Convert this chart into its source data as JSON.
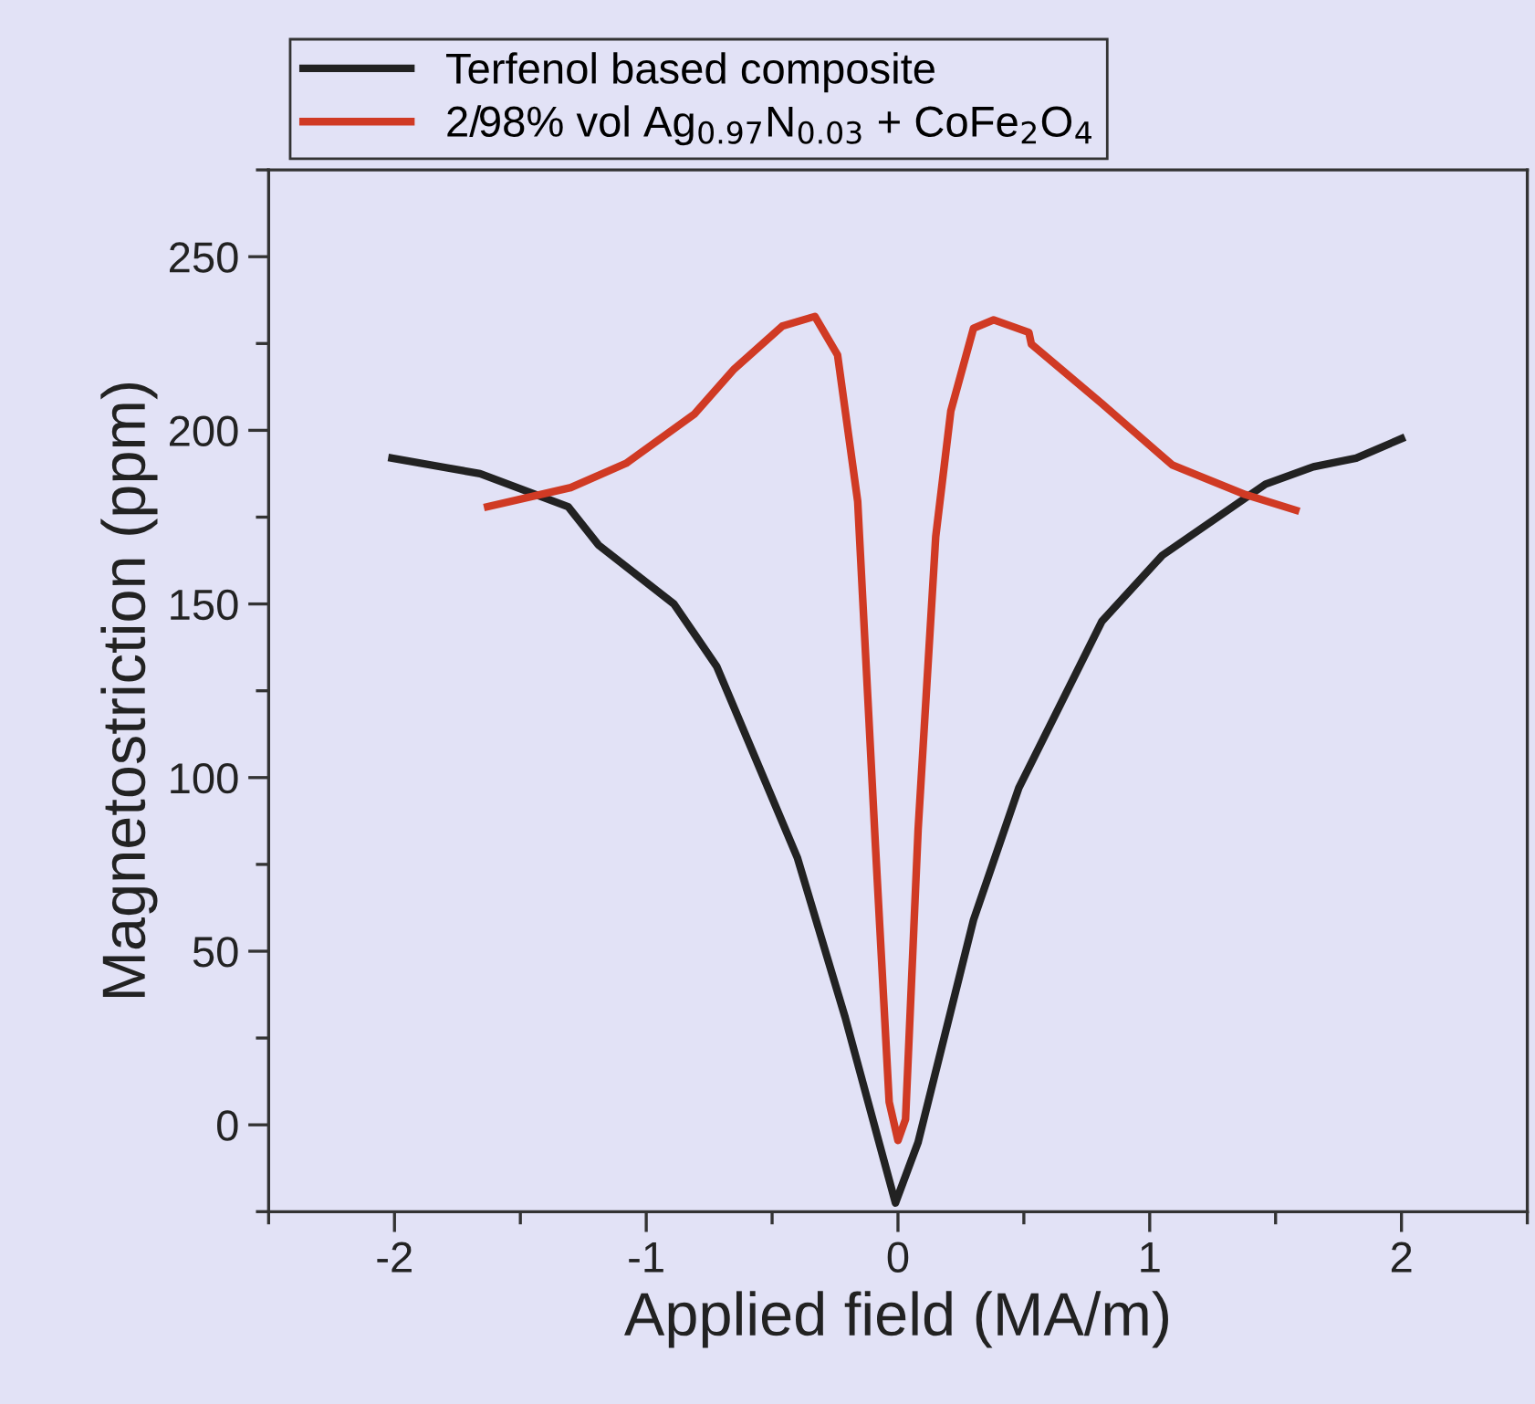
{
  "chart_data": {
    "type": "line",
    "xlabel": "Applied field (MA/m)",
    "ylabel": "Magnetostriction (ppm)",
    "xlim": [
      -2.5,
      2.5
    ],
    "xticks": [
      -2,
      -1,
      0,
      1,
      2
    ],
    "ylim": [
      -25,
      275
    ],
    "yticks": [
      0,
      50,
      100,
      150,
      200,
      250
    ],
    "grid": false,
    "legend": "top",
    "marker": "none",
    "line_style": "solid",
    "series": [
      {
        "name": "Terfenol based composite",
        "color": "#222222",
        "x": [
          -2.01,
          -1.66,
          -1.31,
          -1.19,
          -0.89,
          -0.72,
          -0.4,
          -0.21,
          -0.01,
          0.08,
          0.3,
          0.48,
          0.81,
          1.05,
          1.46,
          1.65,
          1.82,
          2.0
        ],
        "values": [
          192,
          187.5,
          178,
          167,
          150,
          132,
          77,
          31,
          -22.5,
          -5,
          59,
          97,
          145,
          164,
          184.5,
          189.5,
          192,
          197.6
        ]
      },
      {
        "name": "2/98% vol Ag$_{0.97}$N$_{0.03}$ + CoFe$_{2}$O$_{4}$",
        "color": "#d03a24",
        "x": [
          -1.63,
          -1.3,
          -1.08,
          -0.81,
          -0.65,
          -0.46,
          -0.33,
          -0.24,
          -0.16,
          -0.09,
          -0.035,
          0.0,
          0.03,
          0.08,
          0.15,
          0.21,
          0.3,
          0.38,
          0.52,
          0.53,
          0.81,
          1.09,
          1.38,
          1.58
        ],
        "values": [
          178,
          183.5,
          190.5,
          204.6,
          217.7,
          230,
          232.8,
          221.7,
          179.5,
          81,
          6.6,
          -4.5,
          1.6,
          85,
          169.4,
          205.6,
          229.4,
          231.8,
          228.2,
          224.8,
          207.7,
          190,
          181.5,
          177
        ]
      }
    ]
  }
}
